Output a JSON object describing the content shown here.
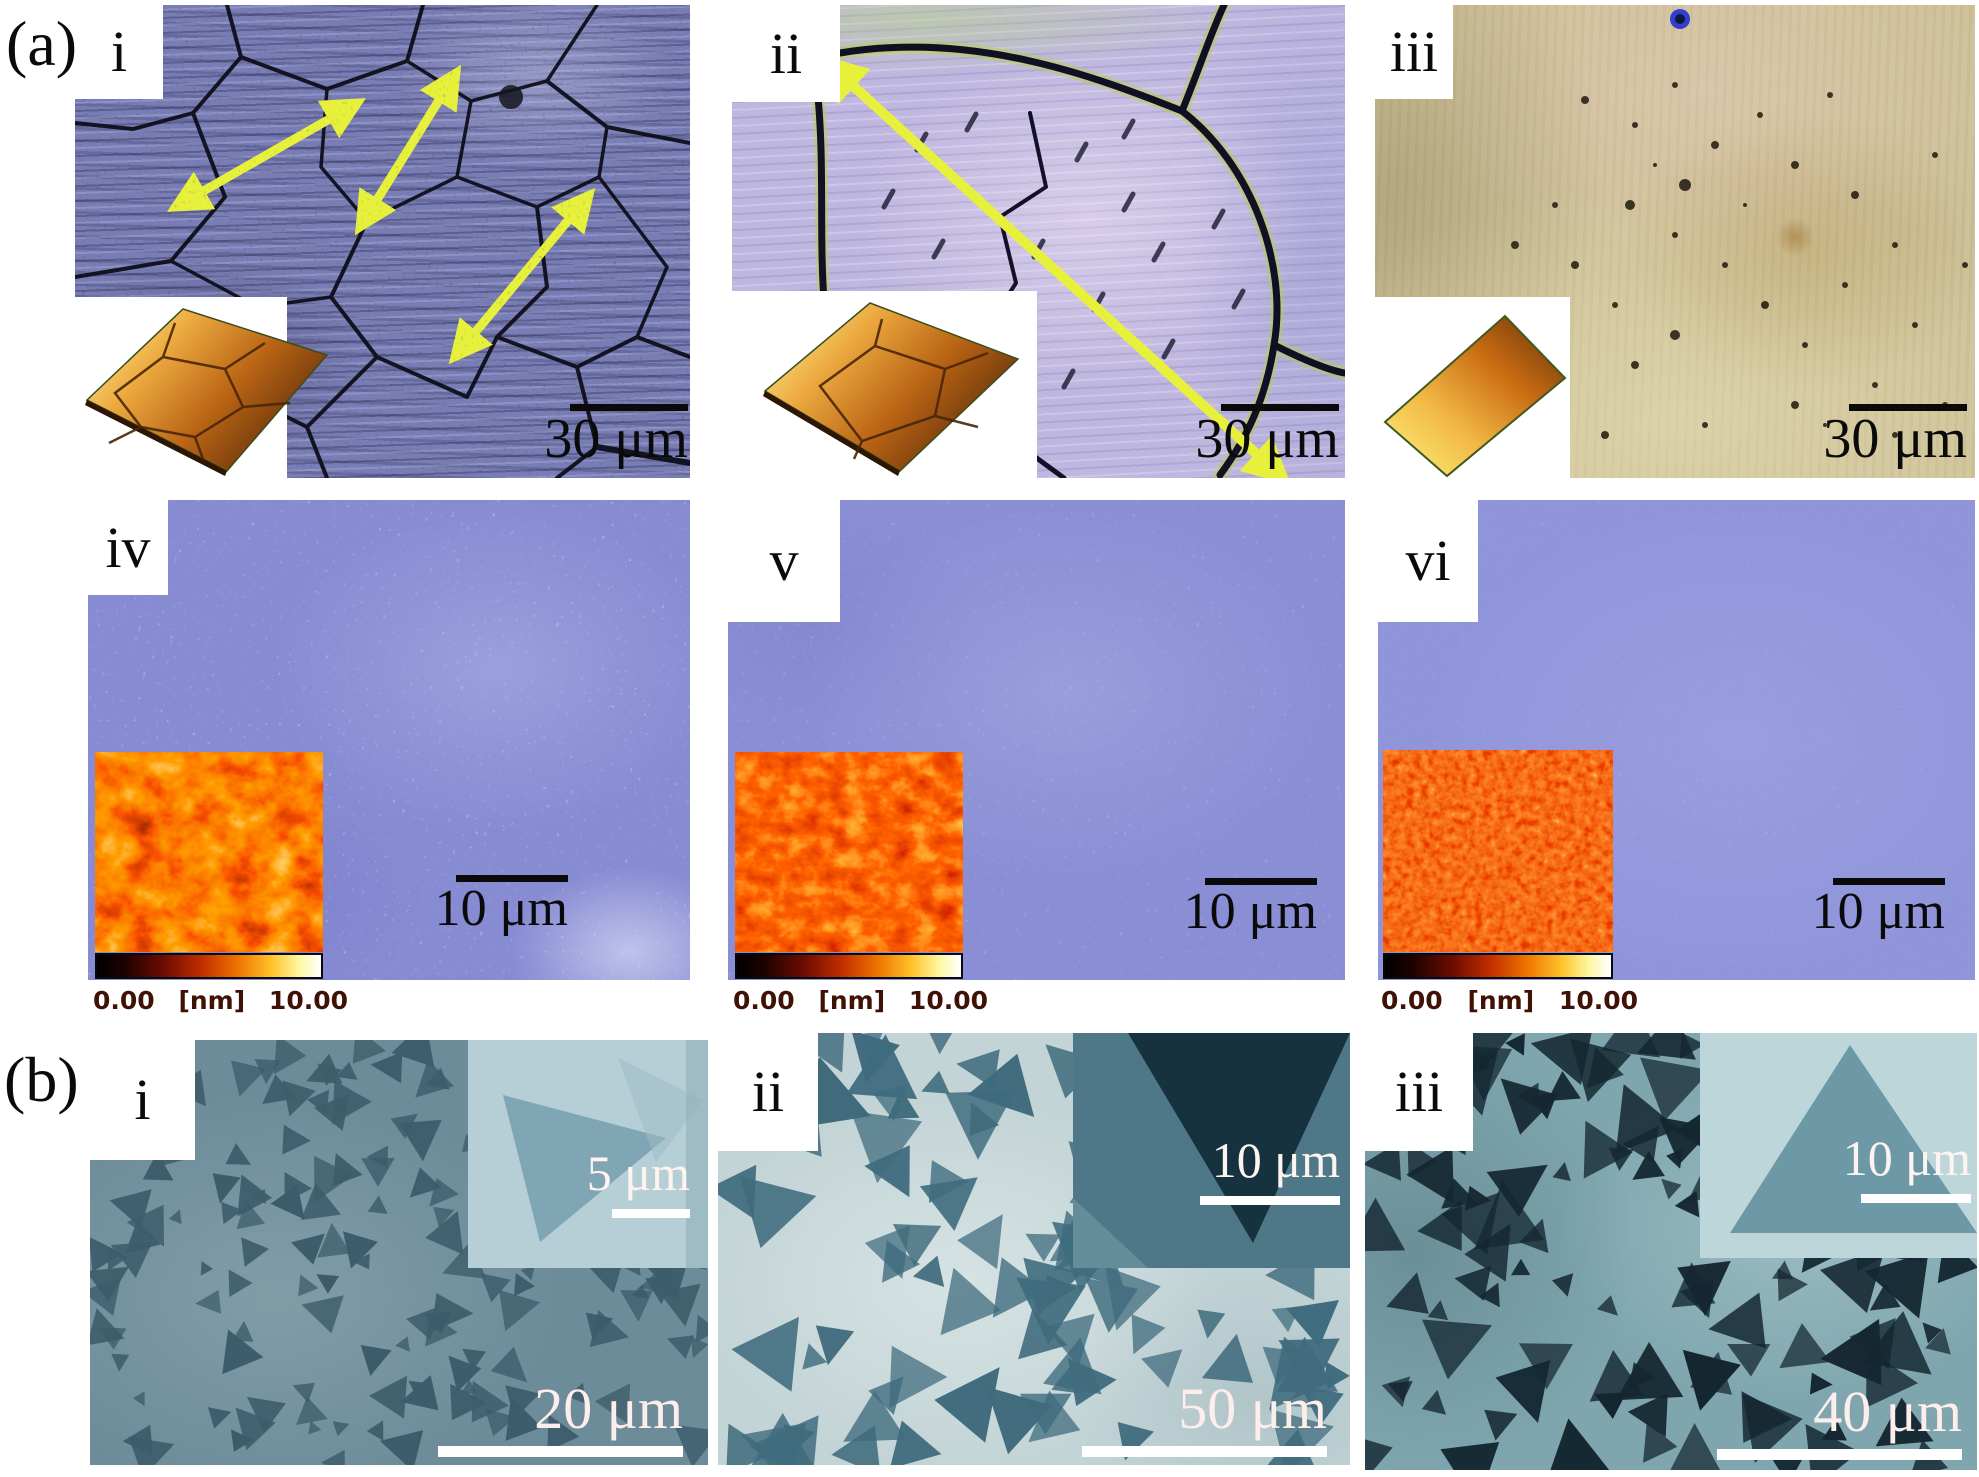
{
  "panel_a": {
    "label": "(a)",
    "row1": [
      {
        "label": "i",
        "scale_bar": "30 μm"
      },
      {
        "label": "ii",
        "scale_bar": "30 μm"
      },
      {
        "label": "iii",
        "scale_bar": "30 μm"
      }
    ],
    "row2": [
      {
        "label": "iv",
        "scale_bar": "10 μm",
        "colorbar": {
          "min": "0.00",
          "unit": "[nm]",
          "max": "10.00"
        }
      },
      {
        "label": "v",
        "scale_bar": "10 μm",
        "colorbar": {
          "min": "0.00",
          "unit": "[nm]",
          "max": "10.00"
        }
      },
      {
        "label": "vi",
        "scale_bar": "10 μm",
        "colorbar": {
          "min": "0.00",
          "unit": "[nm]",
          "max": "10.00"
        }
      }
    ]
  },
  "panel_b": {
    "label": "(b)",
    "items": [
      {
        "label": "i",
        "inset_scale_bar": "5 μm",
        "scale_bar": "20 μm"
      },
      {
        "label": "ii",
        "inset_scale_bar": "10 μm",
        "scale_bar": "50 μm"
      },
      {
        "label": "iii",
        "inset_scale_bar": "10 μm",
        "scale_bar": "40 μm"
      }
    ]
  },
  "colors": {
    "optical_base_i": "#797db5",
    "optical_base_ii": "#bfb7df",
    "optical_base_iii": "#cfc29a",
    "grain_boundary": "#0b0b16",
    "annotation_arrow": "#e7f13c",
    "afm_base": "#8a8ed4",
    "afm_hot_low": "#000000",
    "afm_hot_mid": "#c22f00",
    "afm_hot_high": "#ffffff",
    "gold_inset_light": "#fdf49a",
    "gold_inset_dark": "#53280a",
    "sem_bg_i": "#6d8c99",
    "sem_triangle_i": "#3d5c6b",
    "sem_bg_ii": "#c3d4d6",
    "sem_triangle_ii": "#3f6b7d",
    "sem_bg_iii": "#7fa6af",
    "sem_triangle_iii": "#142731",
    "scale_text_dark": "#0a0a0a",
    "scale_text_light": "#fdeeec"
  }
}
